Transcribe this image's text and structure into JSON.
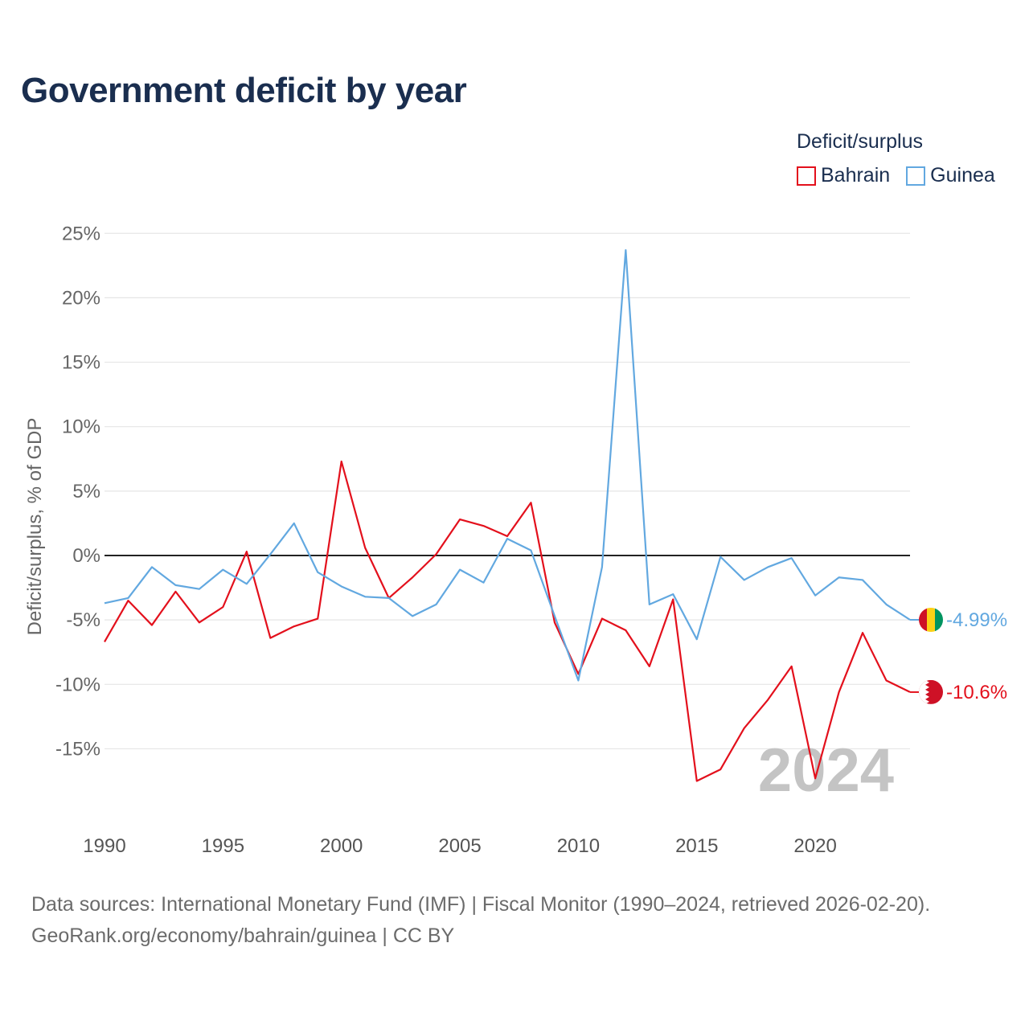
{
  "chart_data": {
    "type": "line",
    "title": "Government deficit by year",
    "legend_title": "Deficit/surplus",
    "ylabel": "Deficit/surplus, % of GDP",
    "xlabel": "",
    "xlim": [
      1990,
      2024
    ],
    "ylim": [
      -20,
      26
    ],
    "y_ticks": [
      25,
      20,
      15,
      10,
      5,
      0,
      -5,
      -10,
      -15
    ],
    "y_tick_labels": [
      "25%",
      "20%",
      "15%",
      "10%",
      "5%",
      "0%",
      "-5%",
      "-10%",
      "-15%"
    ],
    "x_ticks": [
      1990,
      1995,
      2000,
      2005,
      2010,
      2015,
      2020
    ],
    "x_tick_labels": [
      "1990",
      "1995",
      "2000",
      "2005",
      "2010",
      "2015",
      "2020"
    ],
    "watermark_year": "2024",
    "x": [
      1990,
      1991,
      1992,
      1993,
      1994,
      1995,
      1996,
      1997,
      1998,
      1999,
      2000,
      2001,
      2002,
      2003,
      2004,
      2005,
      2006,
      2007,
      2008,
      2009,
      2010,
      2011,
      2012,
      2013,
      2014,
      2015,
      2016,
      2017,
      2018,
      2019,
      2020,
      2021,
      2022,
      2023,
      2024
    ],
    "series": [
      {
        "name": "Bahrain",
        "color": "#e3101c",
        "end_label": "-10.6%",
        "values": [
          -6.7,
          -3.5,
          -5.4,
          -2.8,
          -5.2,
          -4.0,
          0.3,
          -6.4,
          -5.5,
          -4.9,
          7.3,
          0.6,
          -3.3,
          -1.7,
          0.1,
          2.8,
          2.3,
          1.5,
          4.1,
          -5.2,
          -9.2,
          -4.9,
          -5.8,
          -8.6,
          -3.4,
          -17.5,
          -16.6,
          -13.4,
          -11.2,
          -8.6,
          -17.3,
          -10.6,
          -6.0,
          -9.7,
          -10.6
        ]
      },
      {
        "name": "Guinea",
        "color": "#62a8e0",
        "end_label": "-4.99%",
        "values": [
          -3.7,
          -3.3,
          -0.9,
          -2.3,
          -2.6,
          -1.1,
          -2.2,
          0.1,
          2.5,
          -1.3,
          -2.4,
          -3.2,
          -3.3,
          -4.7,
          -3.8,
          -1.1,
          -2.1,
          1.3,
          0.4,
          -4.7,
          -9.7,
          -0.9,
          23.7,
          -3.8,
          -3.0,
          -6.5,
          -0.1,
          -1.9,
          -0.9,
          -0.2,
          -3.1,
          -1.7,
          -1.9,
          -3.8,
          -4.99
        ]
      }
    ]
  },
  "flags": {
    "guinea": {
      "colors": [
        "#ce1126",
        "#fcd116",
        "#009460"
      ]
    },
    "bahrain": {
      "colors": [
        "#ffffff",
        "#ce1126"
      ]
    }
  },
  "source": {
    "line1": "Data sources: International Monetary Fund (IMF) | Fiscal Monitor (1990–2024, retrieved 2026-02-20).",
    "line2": "GeoRank.org/economy/bahrain/guinea | CC BY"
  }
}
